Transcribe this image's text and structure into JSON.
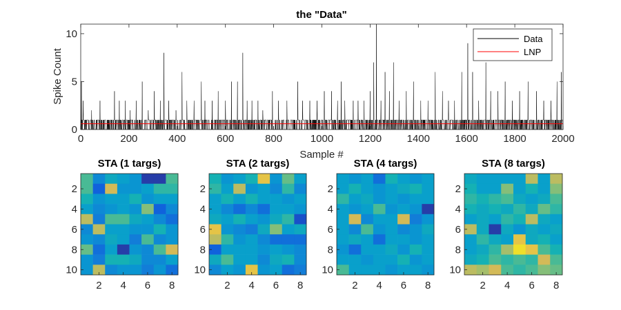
{
  "chart_data": [
    {
      "type": "line",
      "title": "the \"Data\"",
      "xlabel": "Sample #",
      "ylabel": "Spike Count",
      "xlim": [
        0,
        2000
      ],
      "ylim": [
        0,
        11
      ],
      "xticks": [
        0,
        200,
        400,
        600,
        800,
        1000,
        1200,
        1400,
        1600,
        1800,
        2000
      ],
      "yticks": [
        0,
        5,
        10
      ],
      "grid": false,
      "legend": "top-right",
      "series": [
        {
          "name": "Data",
          "color": "#000000",
          "baseline_values": [
            0,
            1
          ],
          "spikes": [
            [
              3,
              5
            ],
            [
              10,
              3
            ],
            [
              45,
              2
            ],
            [
              80,
              3
            ],
            [
              140,
              4
            ],
            [
              160,
              3
            ],
            [
              185,
              3
            ],
            [
              205,
              2
            ],
            [
              230,
              3
            ],
            [
              255,
              5
            ],
            [
              280,
              2
            ],
            [
              305,
              4
            ],
            [
              330,
              3
            ],
            [
              345,
              8
            ],
            [
              365,
              3
            ],
            [
              395,
              2
            ],
            [
              420,
              6
            ],
            [
              440,
              3
            ],
            [
              470,
              3
            ],
            [
              500,
              5
            ],
            [
              515,
              3
            ],
            [
              545,
              3
            ],
            [
              570,
              4
            ],
            [
              600,
              3
            ],
            [
              625,
              5
            ],
            [
              650,
              5
            ],
            [
              672,
              8
            ],
            [
              690,
              3
            ],
            [
              710,
              3
            ],
            [
              735,
              3
            ],
            [
              755,
              2
            ],
            [
              795,
              4
            ],
            [
              820,
              3
            ],
            [
              855,
              3
            ],
            [
              900,
              5
            ],
            [
              920,
              3
            ],
            [
              950,
              3
            ],
            [
              980,
              3
            ],
            [
              1010,
              4
            ],
            [
              1040,
              4
            ],
            [
              1065,
              3
            ],
            [
              1080,
              5
            ],
            [
              1095,
              3
            ],
            [
              1130,
              3
            ],
            [
              1150,
              3
            ],
            [
              1175,
              3
            ],
            [
              1200,
              4
            ],
            [
              1215,
              7
            ],
            [
              1226,
              11
            ],
            [
              1245,
              3
            ],
            [
              1262,
              6
            ],
            [
              1280,
              4
            ],
            [
              1297,
              7
            ],
            [
              1320,
              3
            ],
            [
              1350,
              4
            ],
            [
              1380,
              5
            ],
            [
              1410,
              3
            ],
            [
              1440,
              3
            ],
            [
              1470,
              6
            ],
            [
              1500,
              4
            ],
            [
              1525,
              3
            ],
            [
              1550,
              3
            ],
            [
              1580,
              6
            ],
            [
              1605,
              9
            ],
            [
              1625,
              6
            ],
            [
              1650,
              3
            ],
            [
              1680,
              7
            ],
            [
              1700,
              4
            ],
            [
              1730,
              4
            ],
            [
              1760,
              5
            ],
            [
              1790,
              3
            ],
            [
              1820,
              4
            ],
            [
              1855,
              5
            ],
            [
              1890,
              4
            ],
            [
              1920,
              3
            ],
            [
              1950,
              3
            ],
            [
              1975,
              5
            ],
            [
              1993,
              6
            ]
          ]
        },
        {
          "name": "LNP",
          "color": "#ff0000",
          "values_constant": 0.6
        }
      ]
    },
    {
      "type": "heatmap",
      "title": "STA (1 targs)",
      "xticks": [
        2,
        4,
        6,
        8
      ],
      "yticks": [
        2,
        4,
        6,
        8,
        10
      ],
      "rows": 10,
      "cols": 8,
      "values": [
        [
          0.6,
          0.3,
          0.45,
          0.4,
          0.35,
          0.05,
          0.05,
          0.6
        ],
        [
          0.6,
          0.15,
          0.85,
          0.35,
          0.35,
          0.4,
          0.55,
          0.55
        ],
        [
          0.5,
          0.35,
          0.4,
          0.4,
          0.5,
          0.35,
          0.4,
          0.4
        ],
        [
          0.4,
          0.3,
          0.35,
          0.4,
          0.35,
          0.7,
          0.15,
          0.3
        ],
        [
          0.8,
          0.25,
          0.6,
          0.6,
          0.45,
          0.4,
          0.3,
          0.2
        ],
        [
          0.3,
          0.8,
          0.4,
          0.4,
          0.35,
          0.35,
          0.5,
          0.35
        ],
        [
          0.35,
          0.3,
          0.45,
          0.4,
          0.25,
          0.6,
          0.3,
          0.35
        ],
        [
          0.65,
          0.2,
          0.4,
          0.05,
          0.35,
          0.3,
          0.6,
          0.85
        ],
        [
          0.35,
          0.25,
          0.5,
          0.5,
          0.45,
          0.3,
          0.3,
          0.4
        ],
        [
          0.35,
          0.8,
          0.3,
          0.35,
          0.35,
          0.25,
          0.35,
          0.2
        ]
      ]
    },
    {
      "type": "heatmap",
      "title": "STA (2 targs)",
      "xticks": [
        2,
        4,
        6,
        8
      ],
      "yticks": [
        2,
        4,
        6,
        8,
        10
      ],
      "rows": 10,
      "cols": 8,
      "values": [
        [
          0.5,
          0.35,
          0.4,
          0.5,
          0.9,
          0.35,
          0.65,
          0.4
        ],
        [
          0.55,
          0.4,
          0.8,
          0.35,
          0.4,
          0.3,
          0.55,
          0.3
        ],
        [
          0.4,
          0.5,
          0.4,
          0.5,
          0.4,
          0.4,
          0.35,
          0.4
        ],
        [
          0.4,
          0.3,
          0.2,
          0.3,
          0.2,
          0.4,
          0.4,
          0.35
        ],
        [
          0.45,
          0.4,
          0.5,
          0.4,
          0.35,
          0.45,
          0.55,
          0.1
        ],
        [
          0.9,
          0.35,
          0.3,
          0.25,
          0.45,
          0.7,
          0.4,
          0.45
        ],
        [
          0.8,
          0.55,
          0.35,
          0.4,
          0.3,
          0.2,
          0.2,
          0.2
        ],
        [
          0.15,
          0.4,
          0.4,
          0.4,
          0.35,
          0.4,
          0.35,
          0.3
        ],
        [
          0.45,
          0.6,
          0.4,
          0.4,
          0.3,
          0.45,
          0.5,
          0.3
        ],
        [
          0.3,
          0.4,
          0.35,
          0.9,
          0.35,
          0.4,
          0.2,
          0.25
        ]
      ]
    },
    {
      "type": "heatmap",
      "title": "STA (4 targs)",
      "xticks": [
        2,
        4,
        6,
        8
      ],
      "yticks": [
        2,
        4,
        6,
        8,
        10
      ],
      "rows": 10,
      "cols": 8,
      "values": [
        [
          0.4,
          0.35,
          0.4,
          0.2,
          0.5,
          0.4,
          0.35,
          0.4
        ],
        [
          0.4,
          0.5,
          0.4,
          0.35,
          0.4,
          0.45,
          0.5,
          0.4
        ],
        [
          0.55,
          0.4,
          0.45,
          0.35,
          0.4,
          0.35,
          0.4,
          0.4
        ],
        [
          0.4,
          0.35,
          0.4,
          0.6,
          0.35,
          0.4,
          0.35,
          0.05
        ],
        [
          0.4,
          0.85,
          0.3,
          0.4,
          0.4,
          0.85,
          0.25,
          0.35
        ],
        [
          0.4,
          0.3,
          0.6,
          0.35,
          0.4,
          0.3,
          0.35,
          0.45
        ],
        [
          0.4,
          0.45,
          0.4,
          0.2,
          0.4,
          0.4,
          0.35,
          0.4
        ],
        [
          0.35,
          0.2,
          0.4,
          0.4,
          0.45,
          0.35,
          0.5,
          0.4
        ],
        [
          0.4,
          0.4,
          0.35,
          0.4,
          0.4,
          0.5,
          0.35,
          0.4
        ],
        [
          0.6,
          0.4,
          0.4,
          0.4,
          0.35,
          0.4,
          0.4,
          0.35
        ]
      ]
    },
    {
      "type": "heatmap",
      "title": "STA (8 targs)",
      "xticks": [
        2,
        4,
        6,
        8
      ],
      "yticks": [
        2,
        4,
        6,
        8,
        10
      ],
      "rows": 10,
      "cols": 8,
      "values": [
        [
          0.45,
          0.4,
          0.4,
          0.4,
          0.4,
          0.8,
          0.4,
          0.8
        ],
        [
          0.5,
          0.4,
          0.4,
          0.7,
          0.4,
          0.5,
          0.4,
          0.7
        ],
        [
          0.55,
          0.5,
          0.55,
          0.6,
          0.45,
          0.4,
          0.45,
          0.6
        ],
        [
          0.5,
          0.45,
          0.5,
          0.45,
          0.55,
          0.45,
          0.65,
          0.55
        ],
        [
          0.4,
          0.45,
          0.4,
          0.55,
          0.5,
          0.8,
          0.45,
          0.4
        ],
        [
          0.8,
          0.45,
          0.05,
          0.45,
          0.35,
          0.45,
          0.4,
          0.45
        ],
        [
          0.4,
          0.55,
          0.45,
          0.4,
          0.9,
          0.45,
          0.5,
          0.4
        ],
        [
          0.4,
          0.45,
          0.55,
          0.75,
          0.95,
          0.9,
          0.6,
          0.5
        ],
        [
          0.45,
          0.5,
          0.6,
          0.55,
          0.6,
          0.55,
          0.85,
          0.6
        ],
        [
          0.8,
          0.75,
          0.85,
          0.6,
          0.55,
          0.6,
          0.7,
          0.65
        ]
      ]
    }
  ]
}
